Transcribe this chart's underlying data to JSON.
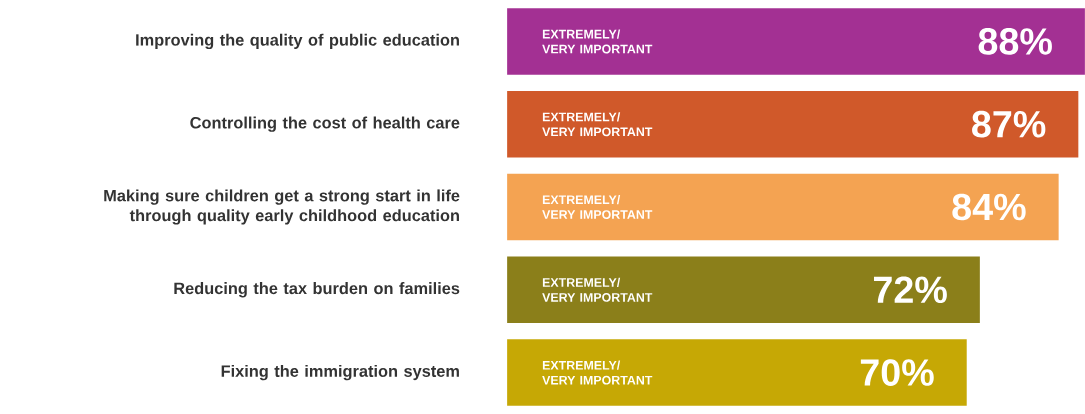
{
  "chart_data": {
    "type": "bar",
    "orientation": "horizontal",
    "categories": [
      "Improving the quality of public education",
      "Controlling the cost of health care",
      "Making sure children get a strong start in life through quality early childhood education",
      "Reducing the tax burden on families",
      "Fixing the immigration system"
    ],
    "series": [
      {
        "name": "EXTREMELY/ VERY IMPORTANT",
        "values": [
          88,
          87,
          84,
          72,
          70
        ],
        "colors": [
          "#a33093",
          "#d0592a",
          "#f4a352",
          "#8b7f1a",
          "#c6a805"
        ],
        "value_labels": [
          "88%",
          "87%",
          "84%",
          "72%",
          "70%"
        ]
      }
    ]
  }
}
